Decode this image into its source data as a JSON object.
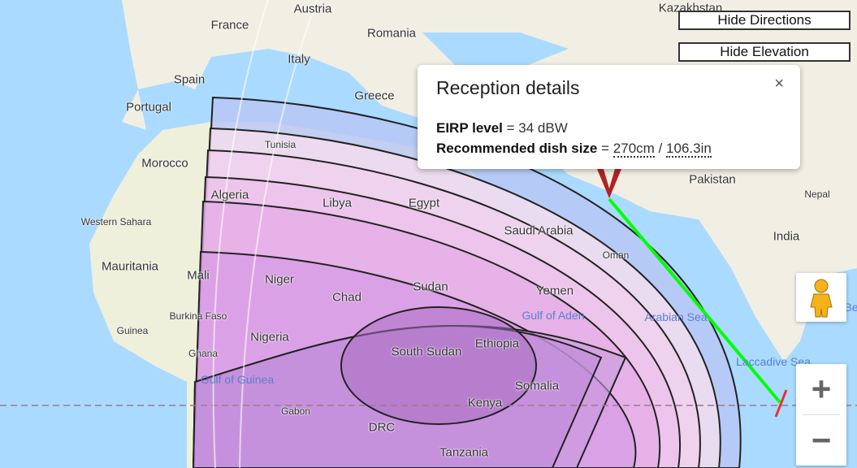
{
  "buttons": {
    "hide_directions": "Hide Directions",
    "hide_elevation": "Hide Elevation"
  },
  "popup": {
    "title": "Reception details",
    "close": "×",
    "eirp_label": "EIRP level",
    "eirp_value": "= 34 dBW",
    "dish_label": "Recommended dish size",
    "dish_eq": "=",
    "dish_cm": "270cm",
    "dish_sep": "/",
    "dish_in": "106.3in"
  },
  "controls": {
    "zoom_in": "+",
    "zoom_out": "−",
    "pegman_icon": "street-view-pegman-icon"
  },
  "colors": {
    "sea": "#aadaff",
    "land": "#f3eee0",
    "beam_line": "#00ff00",
    "pin": "#b22222"
  },
  "labels": [
    "Kazakhstan",
    "Austria",
    "France",
    "Romania",
    "Italy",
    "Spain",
    "Portugal",
    "Greece",
    "Tunisia",
    "Morocco",
    "Algeria",
    "Libya",
    "Egypt",
    "Western Sahara",
    "Saudi Arabia",
    "Pakistan",
    "Nepal",
    "India",
    "Oman",
    "Mauritania",
    "Mali",
    "Niger",
    "Chad",
    "Sudan",
    "Yemen",
    "Burkina Faso",
    "Guinea",
    "Nigeria",
    "Ghana",
    "South Sudan",
    "Ethiopia",
    "Somalia",
    "Kenya",
    "Gabon",
    "DRC",
    "Tanzania"
  ],
  "sea_labels": [
    "Gulf of Aden",
    "Arabian Sea",
    "Laccadive Sea",
    "Gulf of Guinea",
    "Be"
  ]
}
